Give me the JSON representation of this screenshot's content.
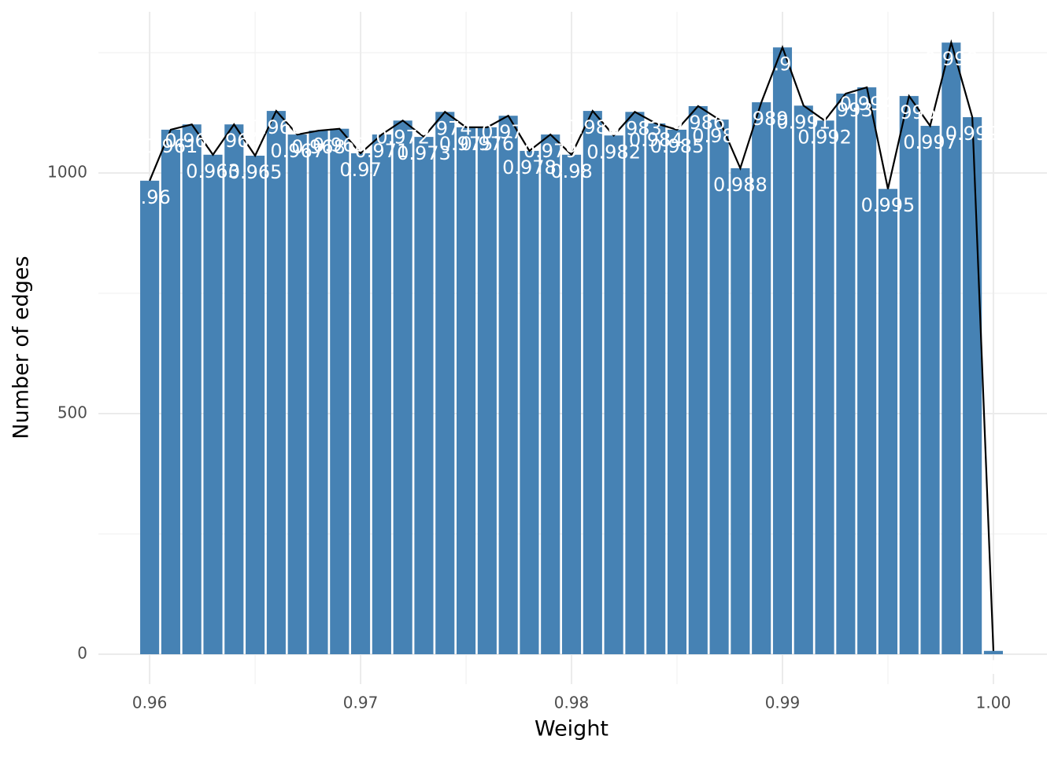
{
  "chart_data": {
    "type": "bar",
    "x_label": "Weight",
    "y_label": "Number of edges",
    "x": [
      0.96,
      0.961,
      0.962,
      0.963,
      0.964,
      0.965,
      0.966,
      0.967,
      0.968,
      0.969,
      0.97,
      0.971,
      0.972,
      0.973,
      0.974,
      0.975,
      0.976,
      0.977,
      0.978,
      0.979,
      0.98,
      0.981,
      0.982,
      0.983,
      0.984,
      0.985,
      0.986,
      0.987,
      0.988,
      0.989,
      0.99,
      0.991,
      0.992,
      0.993,
      0.994,
      0.995,
      0.996,
      0.997,
      0.998,
      0.999,
      1
    ],
    "values": [
      984,
      1090,
      1101,
      1038,
      1101,
      1036,
      1129,
      1080,
      1088,
      1092,
      1041,
      1080,
      1109,
      1075,
      1127,
      1095,
      1095,
      1119,
      1046,
      1080,
      1038,
      1129,
      1078,
      1127,
      1103,
      1090,
      1139,
      1111,
      1010,
      1147,
      1261,
      1140,
      1109,
      1165,
      1178,
      967,
      1160,
      1098,
      1271,
      1116,
      7
    ],
    "color": "#4682b4",
    "line_color": "#000000",
    "label_color": "#ffffff",
    "xlim": [
      0.95757,
      1.00254
    ],
    "xticks": [
      0.96,
      0.97,
      0.98,
      0.99,
      {
        "value": 1,
        "label": "1.00"
      }
    ],
    "x_minor_ticks": [
      0.965,
      0.975,
      0.985,
      0.995
    ],
    "ylim": [
      -62,
      1335
    ],
    "yticks": [
      0,
      500,
      1000
    ],
    "y_minor_ticks": [
      250,
      750,
      1250
    ],
    "grid": true
  }
}
